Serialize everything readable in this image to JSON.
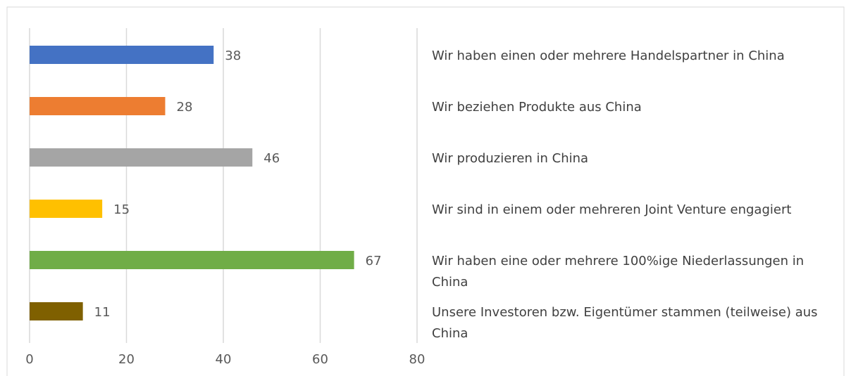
{
  "chart_data": {
    "type": "bar",
    "categories": [
      "Wir haben einen oder mehrere Handelspartner in China",
      "Wir beziehen Produkte aus China",
      "Wir produzieren in China",
      "Wir sind in einem oder mehreren Joint Venture engagiert",
      "Wir haben eine oder mehrere 100%ige Niederlassungen in China",
      "Unsere Investoren bzw. Eigentümer stammen (teilweise) aus China"
    ],
    "values": [
      38,
      28,
      46,
      15,
      67,
      11
    ],
    "colors": [
      "#4472c4",
      "#ed7d31",
      "#a5a5a5",
      "#ffc000",
      "#70ad47",
      "#7f6000"
    ],
    "xlim": [
      0,
      80
    ],
    "xticks": [
      0,
      20,
      40,
      60,
      80
    ],
    "grid": true
  }
}
